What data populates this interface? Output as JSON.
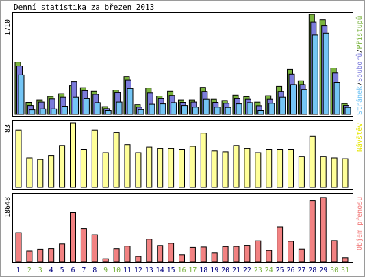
{
  "title": "Denní statistika za březen 2013",
  "chart_data": [
    {
      "type": "bar",
      "panel": "top",
      "ylabel_max": "1710",
      "ylim": [
        0,
        1710
      ],
      "legend": {
        "placement": "right-vertical",
        "parts": [
          "Přístupů",
          "/",
          "Souborů",
          "/",
          "Stránek"
        ]
      },
      "categories": [
        "1",
        "2",
        "3",
        "4",
        "5",
        "6",
        "7",
        "8",
        "9",
        "10",
        "11",
        "12",
        "13",
        "14",
        "15",
        "16",
        "17",
        "18",
        "19",
        "20",
        "21",
        "22",
        "23",
        "24",
        "25",
        "26",
        "27",
        "28",
        "29",
        "30",
        "31"
      ],
      "series": [
        {
          "name": "Přístupů",
          "color": "#7ab33e",
          "values": [
            895,
            205,
            245,
            305,
            350,
            485,
            455,
            395,
            128,
            415,
            648,
            168,
            450,
            310,
            395,
            245,
            245,
            460,
            255,
            235,
            325,
            300,
            208,
            315,
            475,
            768,
            570,
            1710,
            1620,
            790,
            185
          ]
        },
        {
          "name": "Souborů",
          "color": "#7b7bdb",
          "values": [
            825,
            145,
            210,
            260,
            290,
            555,
            405,
            340,
            95,
            370,
            585,
            120,
            365,
            265,
            320,
            205,
            210,
            390,
            205,
            190,
            265,
            255,
            142,
            255,
            390,
            688,
            505,
            1580,
            1515,
            705,
            145
          ]
        },
        {
          "name": "Stránek",
          "color": "#74c5f5",
          "values": [
            675,
            75,
            90,
            90,
            135,
            290,
            265,
            200,
            65,
            210,
            440,
            78,
            175,
            180,
            200,
            145,
            120,
            255,
            120,
            115,
            180,
            200,
            65,
            190,
            290,
            505,
            425,
            1360,
            1390,
            545,
            115
          ]
        }
      ]
    },
    {
      "type": "bar",
      "panel": "middle",
      "ylabel_max": "83",
      "ylim": [
        0,
        83
      ],
      "legend": {
        "placement": "right-vertical",
        "parts": [
          "Návštěv"
        ]
      },
      "categories": [
        "1",
        "2",
        "3",
        "4",
        "5",
        "6",
        "7",
        "8",
        "9",
        "10",
        "11",
        "12",
        "13",
        "14",
        "15",
        "16",
        "17",
        "18",
        "19",
        "20",
        "21",
        "22",
        "23",
        "24",
        "25",
        "26",
        "27",
        "28",
        "29",
        "30",
        "31"
      ],
      "series": [
        {
          "name": "Návštěv",
          "color": "#ffff99",
          "values": [
            74,
            38,
            36,
            41,
            54,
            83,
            49,
            74,
            45,
            71,
            55,
            45,
            52,
            50,
            50,
            49,
            53,
            70,
            47,
            46,
            54,
            50,
            45,
            49,
            49,
            49,
            40,
            66,
            40,
            38,
            37
          ]
        }
      ]
    },
    {
      "type": "bar",
      "panel": "bottom",
      "ylabel_max": "18648",
      "ylim": [
        0,
        18648
      ],
      "legend": {
        "placement": "right-vertical",
        "parts": [
          "Objem přenosu"
        ]
      },
      "categories": [
        "1",
        "2",
        "3",
        "4",
        "5",
        "6",
        "7",
        "8",
        "9",
        "10",
        "11",
        "12",
        "13",
        "14",
        "15",
        "16",
        "17",
        "18",
        "19",
        "20",
        "21",
        "22",
        "23",
        "24",
        "25",
        "26",
        "27",
        "28",
        "29",
        "30",
        "31"
      ],
      "series": [
        {
          "name": "Objem přenosu",
          "color": "#f28282",
          "values": [
            8340,
            3110,
            3610,
            3770,
            5090,
            14080,
            9410,
            7760,
            940,
            3740,
            4530,
            1540,
            6440,
            4700,
            5270,
            1980,
            4200,
            4300,
            2560,
            4400,
            4450,
            4730,
            5980,
            3260,
            9900,
            5840,
            3660,
            17360,
            18280,
            6040,
            1210
          ]
        }
      ]
    }
  ],
  "weekend_days": [
    "2",
    "3",
    "9",
    "10",
    "16",
    "17",
    "23",
    "24",
    "30",
    "31"
  ],
  "colors": {
    "weekday_label": "#000080",
    "weekend_label": "#7ab33e",
    "frame": "#000000",
    "bar_outline": "#000000",
    "legend_visits": "#e6e600",
    "legend_volume": "#f28282"
  }
}
